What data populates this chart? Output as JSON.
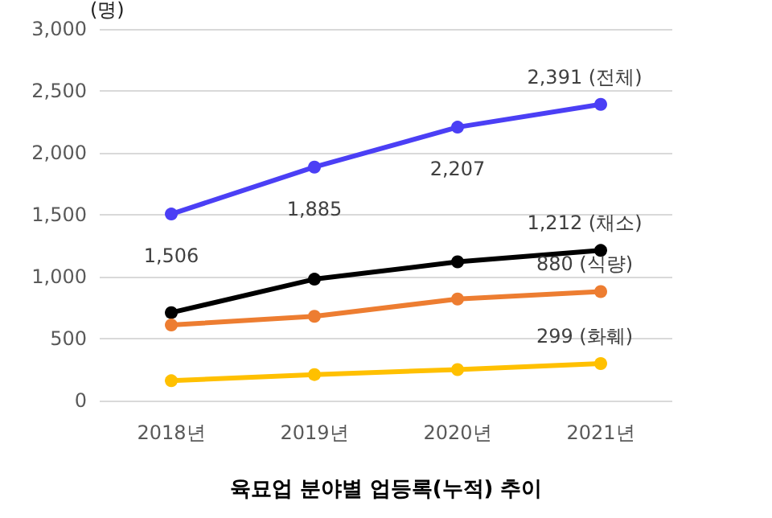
{
  "chart_data": {
    "type": "line",
    "title": "육묘업 분야별 업등록(누적) 추이",
    "ylabel": "(명)",
    "categories": [
      "2018년",
      "2019년",
      "2020년",
      "2021년"
    ],
    "series": [
      {
        "name": "(전체)",
        "color": "#4b3ff5",
        "values": [
          1506,
          1885,
          2207,
          2391
        ],
        "value_labels": [
          "1,506",
          "1,885",
          "2,207",
          "2,391"
        ]
      },
      {
        "name": "(채소)",
        "color": "#000000",
        "values": [
          710,
          980,
          1120,
          1212
        ],
        "value_labels": [
          null,
          null,
          null,
          "1,212"
        ]
      },
      {
        "name": "(식량)",
        "color": "#ed7d31",
        "values": [
          610,
          680,
          820,
          880
        ],
        "value_labels": [
          null,
          null,
          null,
          "880"
        ]
      },
      {
        "name": "(화훼)",
        "color": "#ffc000",
        "values": [
          160,
          210,
          250,
          299
        ],
        "value_labels": [
          null,
          null,
          null,
          "299"
        ]
      }
    ],
    "ylim": [
      0,
      3000
    ],
    "yticks": [
      0,
      500,
      {
        "value": 1000,
        "label": "1,000"
      },
      {
        "value": 1500,
        "label": "1,500"
      },
      {
        "value": 2000,
        "label": "2,000"
      },
      {
        "value": 2500,
        "label": "2,500"
      },
      {
        "value": 3000,
        "label": "3,000"
      }
    ],
    "grid": "y",
    "marker": "circle",
    "line_style": "solid",
    "legend": false
  }
}
